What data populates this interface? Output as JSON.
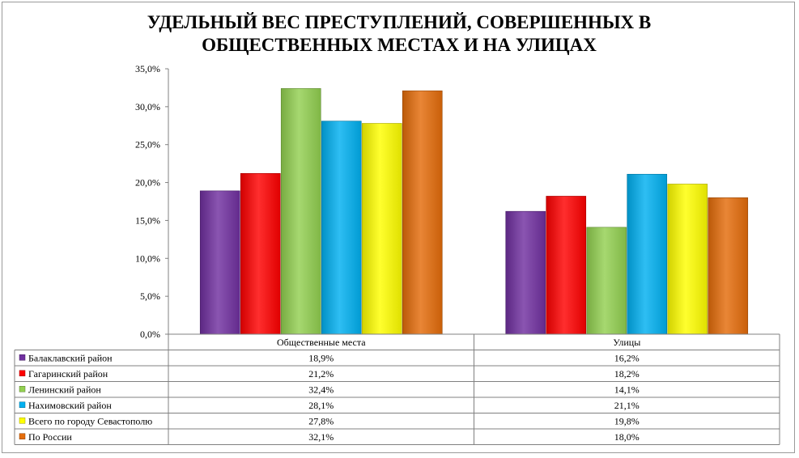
{
  "chart_data": {
    "type": "bar",
    "title_lines": [
      "УДЕЛЬНЫЙ ВЕС  ПРЕСТУПЛЕНИЙ, СОВЕРШЕННЫХ В",
      "ОБЩЕСТВЕННЫХ МЕСТАХ  И НА УЛИЦАХ"
    ],
    "categories": [
      "Общественные места",
      "Улицы"
    ],
    "ylim": [
      0,
      35
    ],
    "y_ticks": [
      "0,0%",
      "5,0%",
      "10,0%",
      "15,0%",
      "20,0%",
      "25,0%",
      "30,0%",
      "35,0%"
    ],
    "y_tick_values": [
      0,
      5,
      10,
      15,
      20,
      25,
      30,
      35
    ],
    "grid": false,
    "legend": "data-table-below",
    "series": [
      {
        "name": "Балаклавский  район",
        "values": [
          18.9,
          16.2
        ],
        "labels": [
          "18,9%",
          "16,2%"
        ],
        "color": "#7030a0"
      },
      {
        "name": "Гагаринский  район",
        "values": [
          21.2,
          18.2
        ],
        "labels": [
          "21,2%",
          "18,2%"
        ],
        "color": "#ff0000"
      },
      {
        "name": "Ленинский район",
        "values": [
          32.4,
          14.1
        ],
        "labels": [
          "32,4%",
          "14,1%"
        ],
        "color": "#92d050"
      },
      {
        "name": "Нахимовский  район",
        "values": [
          28.1,
          21.1
        ],
        "labels": [
          "28,1%",
          "21,1%"
        ],
        "color": "#00b0f0"
      },
      {
        "name": "Всего по городу Севастополю",
        "values": [
          27.8,
          19.8
        ],
        "labels": [
          "27,8%",
          "19,8%"
        ],
        "color": "#ffff00"
      },
      {
        "name": "По России",
        "values": [
          32.1,
          18.0
        ],
        "labels": [
          "32,1%",
          "18,0%"
        ],
        "color": "#e46c0a"
      }
    ]
  }
}
